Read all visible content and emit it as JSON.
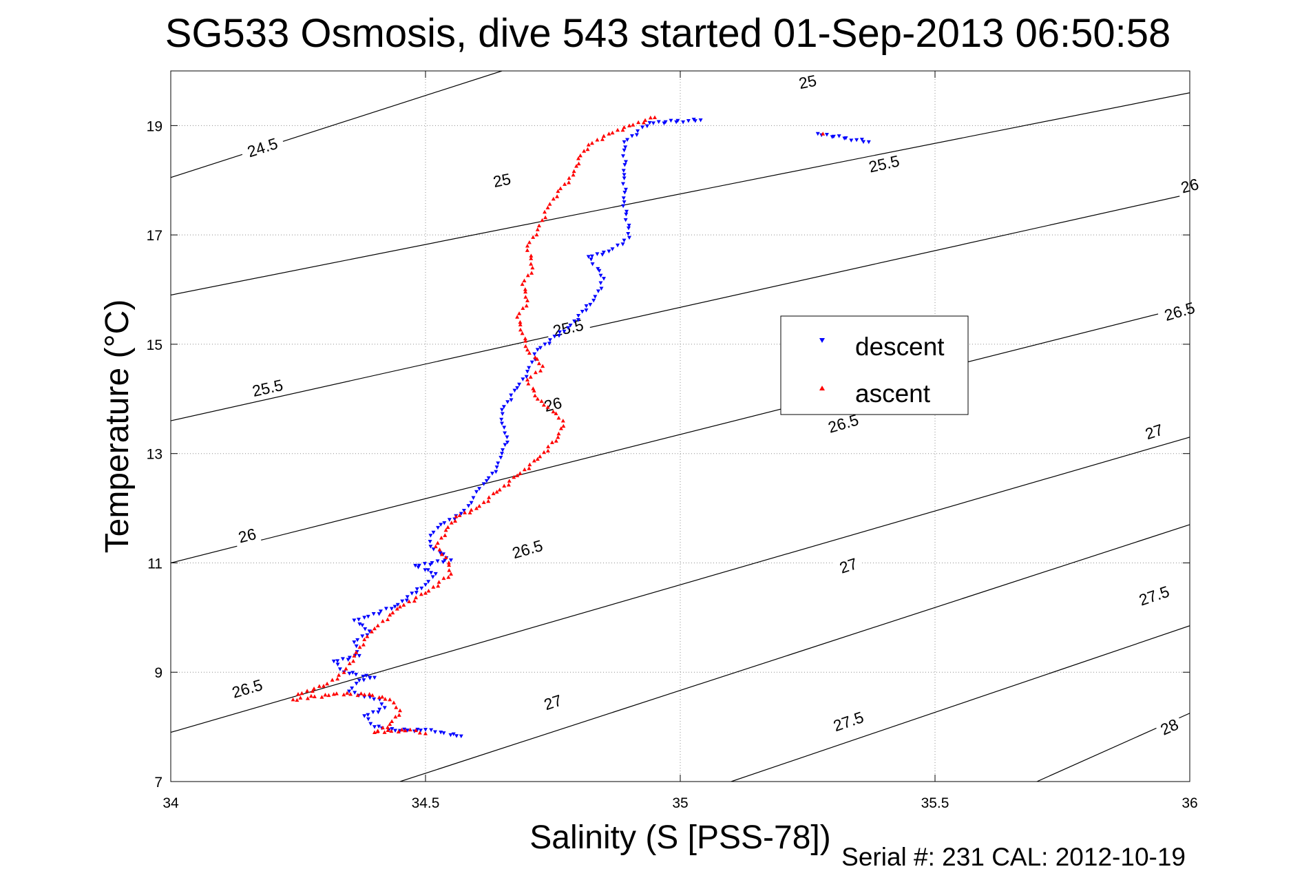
{
  "chart_data": {
    "type": "scatter",
    "title": "SG533 Osmosis, dive 543 started 01-Sep-2013 06:50:58",
    "xlabel": "Salinity (S [PSS-78])",
    "ylabel": "Temperature (°C)",
    "xlim": [
      34,
      36
    ],
    "ylim": [
      7,
      20
    ],
    "x_ticks": [
      "34",
      "34.5",
      "35",
      "35.5",
      "36"
    ],
    "y_ticks": [
      "7",
      "9",
      "11",
      "13",
      "15",
      "17",
      "19"
    ],
    "grid": true,
    "legend_position": "center-right",
    "footer": "Serial #: 231  CAL: 2012-10-19",
    "density_contours": [
      {
        "label": "24.5",
        "points": [
          [
            34,
            18.05
          ],
          [
            34.65,
            20
          ]
        ],
        "label_at": [
          [
            34.18,
            18.6
          ]
        ]
      },
      {
        "label": "25",
        "points": [
          [
            34,
            15.9
          ],
          [
            36,
            19.6
          ]
        ],
        "label_at": [
          [
            34.65,
            18.0
          ],
          [
            35.25,
            19.8
          ]
        ]
      },
      {
        "label": "25.5",
        "points": [
          [
            34,
            13.6
          ],
          [
            36,
            17.75
          ]
        ],
        "label_at": [
          [
            34.19,
            14.2
          ],
          [
            34.78,
            15.3
          ],
          [
            35.4,
            18.3
          ]
        ]
      },
      {
        "label": "26",
        "points": [
          [
            34,
            11.0
          ],
          [
            36,
            15.7
          ]
        ],
        "label_at": [
          [
            34.15,
            11.5
          ],
          [
            34.75,
            13.9
          ],
          [
            35.35,
            15.3
          ],
          [
            36.0,
            17.9
          ]
        ]
      },
      {
        "label": "26.5",
        "points": [
          [
            34,
            7.9
          ],
          [
            36,
            13.3
          ]
        ],
        "label_at": [
          [
            34.15,
            8.7
          ],
          [
            34.7,
            11.25
          ],
          [
            35.32,
            13.55
          ],
          [
            35.98,
            15.6
          ]
        ]
      },
      {
        "label": "27",
        "points": [
          [
            34.45,
            7.0
          ],
          [
            36,
            11.7
          ]
        ],
        "label_at": [
          [
            34.75,
            8.45
          ],
          [
            35.33,
            10.95
          ],
          [
            35.93,
            13.4
          ]
        ]
      },
      {
        "label": "27.5",
        "points": [
          [
            35.1,
            7.0
          ],
          [
            36,
            9.85
          ]
        ],
        "label_at": [
          [
            35.33,
            8.1
          ],
          [
            35.93,
            10.4
          ]
        ]
      },
      {
        "label": "28",
        "points": [
          [
            35.7,
            7.0
          ],
          [
            36,
            8.25
          ]
        ],
        "label_at": [
          [
            35.96,
            8.0
          ]
        ]
      }
    ],
    "series": [
      {
        "name": "descent",
        "color": "#0000ff",
        "marker": "triangle-down",
        "points": [
          [
            34.57,
            7.83
          ],
          [
            34.53,
            7.9
          ],
          [
            34.5,
            7.95
          ],
          [
            34.45,
            7.93
          ],
          [
            34.4,
            8.0
          ],
          [
            34.38,
            8.2
          ],
          [
            34.42,
            8.35
          ],
          [
            34.41,
            8.5
          ],
          [
            34.38,
            8.55
          ],
          [
            34.35,
            8.65
          ],
          [
            34.37,
            8.85
          ],
          [
            34.4,
            8.9
          ],
          [
            34.34,
            9.0
          ],
          [
            34.32,
            9.2
          ],
          [
            34.37,
            9.3
          ],
          [
            34.36,
            9.55
          ],
          [
            34.39,
            9.75
          ],
          [
            34.36,
            9.95
          ],
          [
            34.38,
            10.0
          ],
          [
            34.44,
            10.2
          ],
          [
            34.5,
            10.6
          ],
          [
            34.52,
            10.8
          ],
          [
            34.48,
            10.95
          ],
          [
            34.55,
            11.05
          ],
          [
            34.51,
            11.3
          ],
          [
            34.51,
            11.5
          ],
          [
            34.53,
            11.7
          ],
          [
            34.57,
            11.9
          ],
          [
            34.59,
            12.1
          ],
          [
            34.6,
            12.3
          ],
          [
            34.62,
            12.5
          ],
          [
            34.64,
            12.75
          ],
          [
            34.65,
            13.0
          ],
          [
            34.66,
            13.3
          ],
          [
            34.65,
            13.55
          ],
          [
            34.65,
            13.8
          ],
          [
            34.68,
            14.2
          ],
          [
            34.7,
            14.5
          ],
          [
            34.72,
            14.9
          ],
          [
            34.78,
            15.3
          ],
          [
            34.83,
            15.8
          ],
          [
            34.85,
            16.2
          ],
          [
            34.82,
            16.6
          ],
          [
            34.86,
            16.7
          ],
          [
            34.9,
            16.95
          ],
          [
            34.89,
            17.6
          ],
          [
            34.89,
            18.1
          ],
          [
            34.89,
            18.7
          ],
          [
            34.94,
            19.05
          ],
          [
            35.04,
            19.1
          ],
          [
            35.27,
            18.85
          ],
          [
            35.37,
            18.7
          ]
        ]
      },
      {
        "name": "ascent",
        "color": "#ff0000",
        "marker": "triangle-up",
        "points": [
          [
            34.5,
            7.88
          ],
          [
            34.47,
            7.95
          ],
          [
            34.4,
            7.9
          ],
          [
            34.43,
            8.05
          ],
          [
            34.45,
            8.3
          ],
          [
            34.43,
            8.5
          ],
          [
            34.39,
            8.6
          ],
          [
            34.32,
            8.6
          ],
          [
            34.24,
            8.5
          ],
          [
            34.25,
            8.6
          ],
          [
            34.3,
            8.75
          ],
          [
            34.34,
            9.0
          ],
          [
            34.36,
            9.3
          ],
          [
            34.38,
            9.6
          ],
          [
            34.4,
            9.8
          ],
          [
            34.43,
            10.05
          ],
          [
            34.45,
            10.2
          ],
          [
            34.5,
            10.45
          ],
          [
            34.55,
            10.8
          ],
          [
            34.54,
            11.1
          ],
          [
            34.52,
            11.3
          ],
          [
            34.54,
            11.6
          ],
          [
            34.56,
            11.85
          ],
          [
            34.6,
            12.0
          ],
          [
            34.64,
            12.3
          ],
          [
            34.68,
            12.6
          ],
          [
            34.72,
            12.9
          ],
          [
            34.76,
            13.3
          ],
          [
            34.77,
            13.6
          ],
          [
            34.74,
            13.85
          ],
          [
            34.72,
            14.0
          ],
          [
            34.7,
            14.35
          ],
          [
            34.73,
            14.6
          ],
          [
            34.7,
            14.9
          ],
          [
            34.69,
            15.2
          ],
          [
            34.68,
            15.5
          ],
          [
            34.7,
            15.8
          ],
          [
            34.69,
            16.1
          ],
          [
            34.71,
            16.4
          ],
          [
            34.7,
            16.8
          ],
          [
            34.72,
            17.1
          ],
          [
            34.74,
            17.5
          ],
          [
            34.76,
            17.8
          ],
          [
            34.79,
            18.1
          ],
          [
            34.8,
            18.4
          ],
          [
            34.82,
            18.65
          ],
          [
            34.86,
            18.85
          ],
          [
            34.9,
            19.0
          ],
          [
            34.95,
            19.15
          ],
          [
            35.28,
            18.85
          ]
        ]
      }
    ]
  }
}
